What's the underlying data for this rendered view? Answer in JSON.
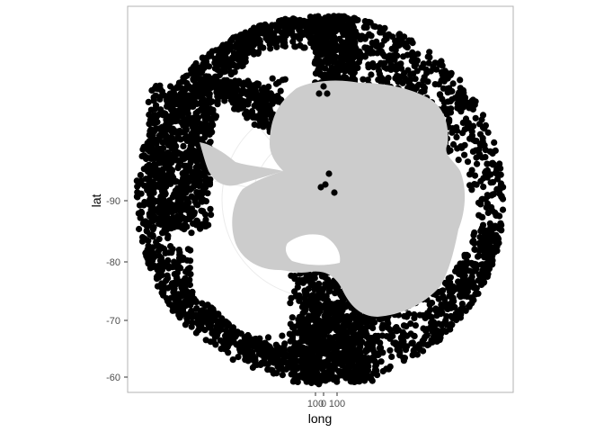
{
  "chart_data": {
    "type": "scatter",
    "projection": "south-polar-orthographic",
    "title": "",
    "xlabel": "long",
    "ylabel": "lat",
    "y_ticks": [
      {
        "label": "-90",
        "value": -90
      },
      {
        "label": "-80",
        "value": -80
      },
      {
        "label": "-70",
        "value": -70
      },
      {
        "label": "-60",
        "value": -60
      }
    ],
    "x_ticks": [
      {
        "label": "100",
        "value": -100
      },
      {
        "label": "0",
        "value": 0
      },
      {
        "label": "100",
        "value": 100
      }
    ],
    "grid": true,
    "background": "#ffffff",
    "land_color": "#cccccc",
    "point_color": "#000000",
    "lat_range": [
      -90,
      -57
    ],
    "points": [
      {
        "lon": 0,
        "lat": -90.0
      },
      {
        "lon": 20,
        "lat": -88.2
      },
      {
        "lon": 160,
        "lat": -88.8
      },
      {
        "lon": 180,
        "lat": -74.0
      },
      {
        "lon": 176,
        "lat": -74.0
      },
      {
        "lon": 10,
        "lat": -57.5
      },
      {
        "lon": -20,
        "lat": -57.5
      },
      {
        "lon": 40,
        "lat": -58.5
      }
    ]
  }
}
